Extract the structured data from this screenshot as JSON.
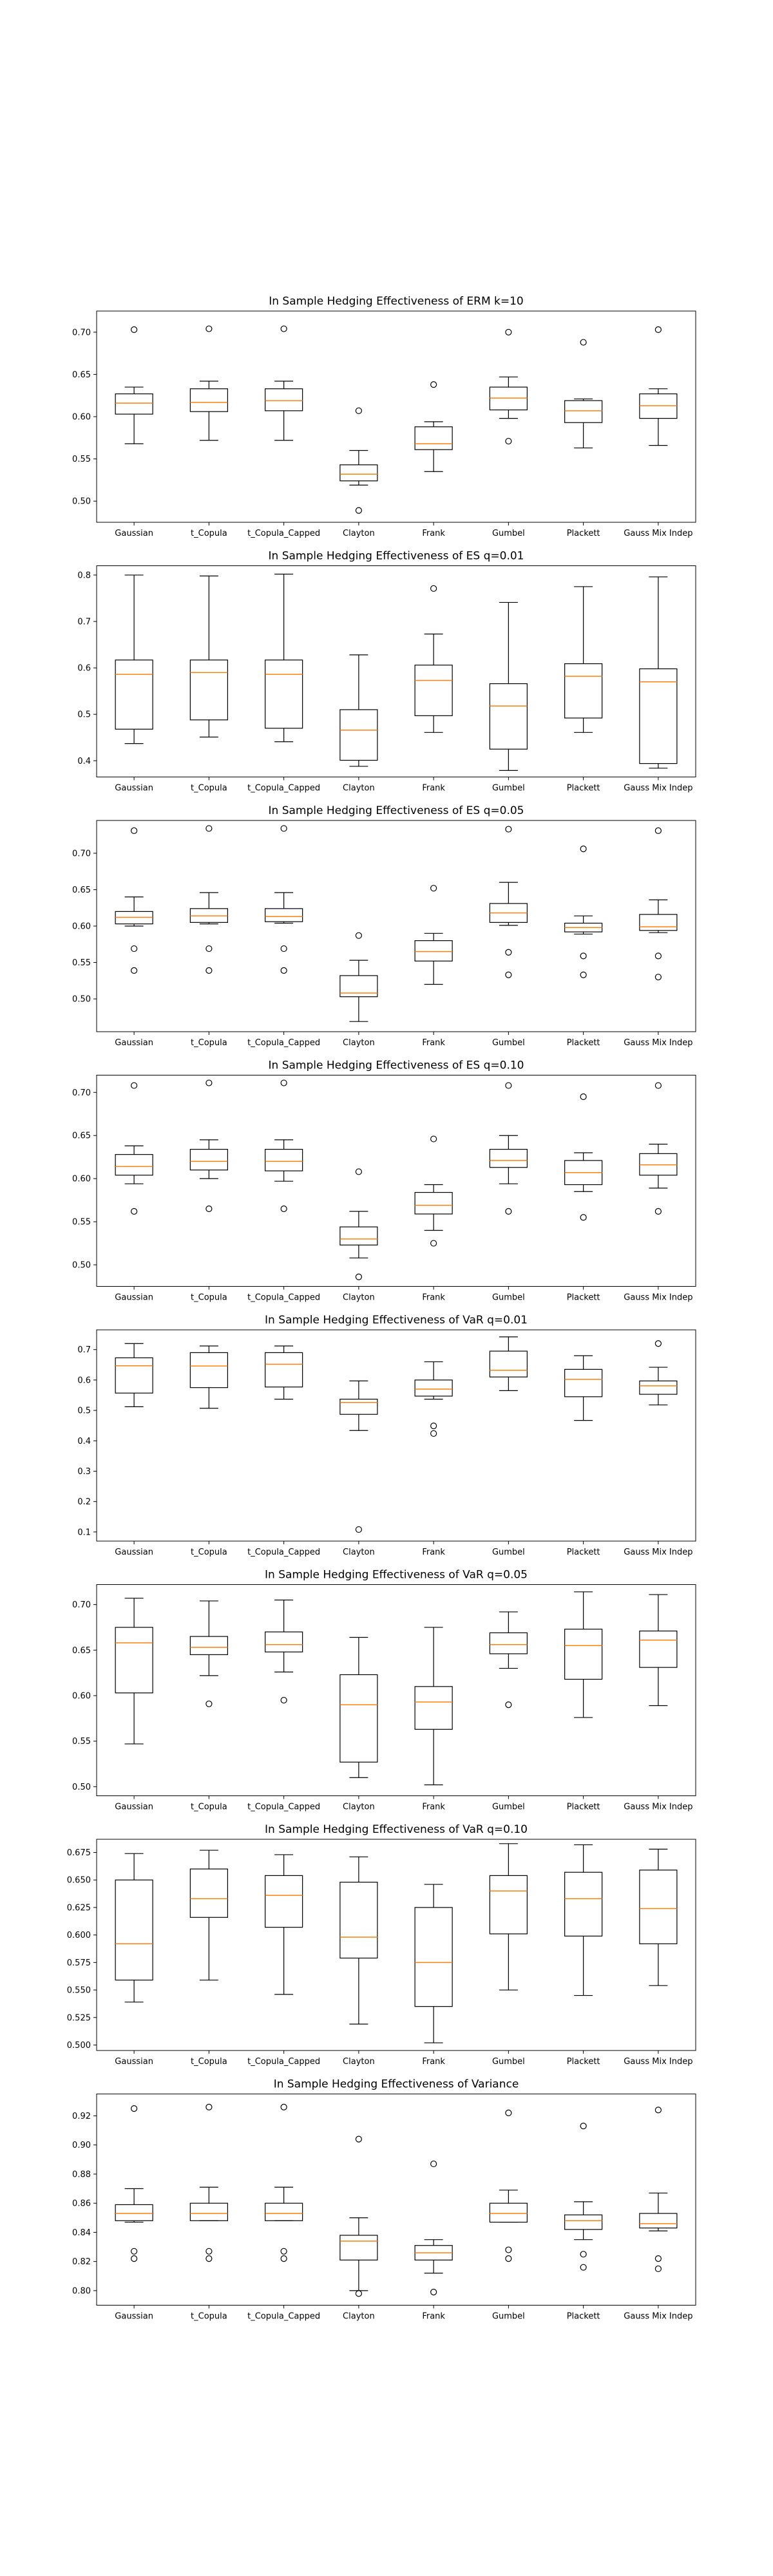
{
  "chart_data": [
    {
      "type": "box",
      "title": "In Sample Hedging Effectiveness of ERM k=10",
      "categories": [
        "Gaussian",
        "t_Copula",
        "t_Copula_Capped",
        "Clayton",
        "Frank",
        "Gumbel",
        "Plackett",
        "Gauss Mix Indep"
      ],
      "ylim": [
        0.475,
        0.725
      ],
      "yticks": [
        0.5,
        0.55,
        0.6,
        0.65,
        0.7
      ],
      "ytick_labels": [
        "0.50",
        "0.55",
        "0.60",
        "0.65",
        "0.70"
      ],
      "boxes": [
        {
          "whislo": 0.568,
          "q1": 0.603,
          "med": 0.616,
          "q3": 0.627,
          "whishi": 0.635,
          "fliers": [
            0.703
          ]
        },
        {
          "whislo": 0.572,
          "q1": 0.606,
          "med": 0.617,
          "q3": 0.633,
          "whishi": 0.642,
          "fliers": [
            0.704
          ]
        },
        {
          "whislo": 0.572,
          "q1": 0.607,
          "med": 0.619,
          "q3": 0.633,
          "whishi": 0.642,
          "fliers": [
            0.704
          ]
        },
        {
          "whislo": 0.519,
          "q1": 0.524,
          "med": 0.532,
          "q3": 0.543,
          "whishi": 0.56,
          "fliers": [
            0.607,
            0.489
          ]
        },
        {
          "whislo": 0.535,
          "q1": 0.561,
          "med": 0.568,
          "q3": 0.588,
          "whishi": 0.594,
          "fliers": [
            0.638
          ]
        },
        {
          "whislo": 0.598,
          "q1": 0.608,
          "med": 0.622,
          "q3": 0.635,
          "whishi": 0.647,
          "fliers": [
            0.7,
            0.571
          ]
        },
        {
          "whislo": 0.563,
          "q1": 0.593,
          "med": 0.607,
          "q3": 0.619,
          "whishi": 0.621,
          "fliers": [
            0.688
          ]
        },
        {
          "whislo": 0.566,
          "q1": 0.598,
          "med": 0.613,
          "q3": 0.627,
          "whishi": 0.633,
          "fliers": [
            0.703
          ]
        }
      ]
    },
    {
      "type": "box",
      "title": "In Sample Hedging Effectiveness of ES q=0.01",
      "categories": [
        "Gaussian",
        "t_Copula",
        "t_Copula_Capped",
        "Clayton",
        "Frank",
        "Gumbel",
        "Plackett",
        "Gauss Mix Indep"
      ],
      "ylim": [
        0.365,
        0.82
      ],
      "yticks": [
        0.4,
        0.5,
        0.6,
        0.7,
        0.8
      ],
      "ytick_labels": [
        "0.4",
        "0.5",
        "0.6",
        "0.7",
        "0.8"
      ],
      "boxes": [
        {
          "whislo": 0.437,
          "q1": 0.468,
          "med": 0.586,
          "q3": 0.617,
          "whishi": 0.8,
          "fliers": []
        },
        {
          "whislo": 0.451,
          "q1": 0.488,
          "med": 0.59,
          "q3": 0.617,
          "whishi": 0.798,
          "fliers": []
        },
        {
          "whislo": 0.441,
          "q1": 0.47,
          "med": 0.586,
          "q3": 0.617,
          "whishi": 0.802,
          "fliers": []
        },
        {
          "whislo": 0.388,
          "q1": 0.401,
          "med": 0.466,
          "q3": 0.51,
          "whishi": 0.628,
          "fliers": []
        },
        {
          "whislo": 0.461,
          "q1": 0.497,
          "med": 0.573,
          "q3": 0.606,
          "whishi": 0.673,
          "fliers": [
            0.771
          ]
        },
        {
          "whislo": 0.379,
          "q1": 0.425,
          "med": 0.518,
          "q3": 0.566,
          "whishi": 0.741,
          "fliers": []
        },
        {
          "whislo": 0.461,
          "q1": 0.492,
          "med": 0.582,
          "q3": 0.609,
          "whishi": 0.775,
          "fliers": []
        },
        {
          "whislo": 0.384,
          "q1": 0.394,
          "med": 0.57,
          "q3": 0.598,
          "whishi": 0.796,
          "fliers": []
        }
      ]
    },
    {
      "type": "box",
      "title": "In Sample Hedging Effectiveness of ES q=0.05",
      "categories": [
        "Gaussian",
        "t_Copula",
        "t_Copula_Capped",
        "Clayton",
        "Frank",
        "Gumbel",
        "Plackett",
        "Gauss Mix Indep"
      ],
      "ylim": [
        0.455,
        0.745
      ],
      "yticks": [
        0.5,
        0.55,
        0.6,
        0.65,
        0.7
      ],
      "ytick_labels": [
        "0.50",
        "0.55",
        "0.60",
        "0.65",
        "0.70"
      ],
      "boxes": [
        {
          "whislo": 0.6,
          "q1": 0.603,
          "med": 0.612,
          "q3": 0.62,
          "whishi": 0.64,
          "fliers": [
            0.731,
            0.569,
            0.539
          ]
        },
        {
          "whislo": 0.603,
          "q1": 0.605,
          "med": 0.614,
          "q3": 0.624,
          "whishi": 0.646,
          "fliers": [
            0.734,
            0.569,
            0.539
          ]
        },
        {
          "whislo": 0.604,
          "q1": 0.606,
          "med": 0.613,
          "q3": 0.624,
          "whishi": 0.646,
          "fliers": [
            0.734,
            0.569,
            0.539
          ]
        },
        {
          "whislo": 0.469,
          "q1": 0.503,
          "med": 0.508,
          "q3": 0.532,
          "whishi": 0.553,
          "fliers": [
            0.587
          ]
        },
        {
          "whislo": 0.52,
          "q1": 0.552,
          "med": 0.565,
          "q3": 0.58,
          "whishi": 0.59,
          "fliers": [
            0.652
          ]
        },
        {
          "whislo": 0.601,
          "q1": 0.605,
          "med": 0.618,
          "q3": 0.631,
          "whishi": 0.66,
          "fliers": [
            0.733,
            0.564,
            0.533
          ]
        },
        {
          "whislo": 0.589,
          "q1": 0.592,
          "med": 0.598,
          "q3": 0.604,
          "whishi": 0.614,
          "fliers": [
            0.706,
            0.559,
            0.533
          ]
        },
        {
          "whislo": 0.591,
          "q1": 0.594,
          "med": 0.599,
          "q3": 0.616,
          "whishi": 0.636,
          "fliers": [
            0.731,
            0.559,
            0.53
          ]
        }
      ]
    },
    {
      "type": "box",
      "title": "In Sample Hedging Effectiveness of ES q=0.10",
      "categories": [
        "Gaussian",
        "t_Copula",
        "t_Copula_Capped",
        "Clayton",
        "Frank",
        "Gumbel",
        "Plackett",
        "Gauss Mix Indep"
      ],
      "ylim": [
        0.475,
        0.72
      ],
      "yticks": [
        0.5,
        0.55,
        0.6,
        0.65,
        0.7
      ],
      "ytick_labels": [
        "0.50",
        "0.55",
        "0.60",
        "0.65",
        "0.70"
      ],
      "boxes": [
        {
          "whislo": 0.594,
          "q1": 0.604,
          "med": 0.614,
          "q3": 0.628,
          "whishi": 0.638,
          "fliers": [
            0.708,
            0.562
          ]
        },
        {
          "whislo": 0.6,
          "q1": 0.61,
          "med": 0.62,
          "q3": 0.634,
          "whishi": 0.645,
          "fliers": [
            0.711,
            0.565
          ]
        },
        {
          "whislo": 0.597,
          "q1": 0.609,
          "med": 0.62,
          "q3": 0.634,
          "whishi": 0.645,
          "fliers": [
            0.711,
            0.565
          ]
        },
        {
          "whislo": 0.508,
          "q1": 0.523,
          "med": 0.53,
          "q3": 0.544,
          "whishi": 0.562,
          "fliers": [
            0.608,
            0.486
          ]
        },
        {
          "whislo": 0.54,
          "q1": 0.559,
          "med": 0.569,
          "q3": 0.584,
          "whishi": 0.593,
          "fliers": [
            0.646,
            0.525
          ]
        },
        {
          "whislo": 0.594,
          "q1": 0.613,
          "med": 0.621,
          "q3": 0.634,
          "whishi": 0.65,
          "fliers": [
            0.708,
            0.562
          ]
        },
        {
          "whislo": 0.585,
          "q1": 0.593,
          "med": 0.607,
          "q3": 0.621,
          "whishi": 0.63,
          "fliers": [
            0.695,
            0.555
          ]
        },
        {
          "whislo": 0.589,
          "q1": 0.604,
          "med": 0.616,
          "q3": 0.629,
          "whishi": 0.64,
          "fliers": [
            0.708,
            0.562
          ]
        }
      ]
    },
    {
      "type": "box",
      "title": "In Sample Hedging Effectiveness of VaR q=0.01",
      "categories": [
        "Gaussian",
        "t_Copula",
        "t_Copula_Capped",
        "Clayton",
        "Frank",
        "Gumbel",
        "Plackett",
        "Gauss Mix Indep"
      ],
      "ylim": [
        0.07,
        0.765
      ],
      "yticks": [
        0.1,
        0.2,
        0.3,
        0.4,
        0.5,
        0.6,
        0.7
      ],
      "ytick_labels": [
        "0.1",
        "0.2",
        "0.3",
        "0.4",
        "0.5",
        "0.6",
        "0.7"
      ],
      "boxes": [
        {
          "whislo": 0.512,
          "q1": 0.557,
          "med": 0.647,
          "q3": 0.673,
          "whishi": 0.72,
          "fliers": []
        },
        {
          "whislo": 0.507,
          "q1": 0.575,
          "med": 0.646,
          "q3": 0.69,
          "whishi": 0.712,
          "fliers": []
        },
        {
          "whislo": 0.537,
          "q1": 0.577,
          "med": 0.652,
          "q3": 0.69,
          "whishi": 0.712,
          "fliers": []
        },
        {
          "whislo": 0.434,
          "q1": 0.487,
          "med": 0.526,
          "q3": 0.537,
          "whishi": 0.597,
          "fliers": [
            0.108
          ]
        },
        {
          "whislo": 0.537,
          "q1": 0.547,
          "med": 0.57,
          "q3": 0.6,
          "whishi": 0.66,
          "fliers": [
            0.449,
            0.424
          ]
        },
        {
          "whislo": 0.565,
          "q1": 0.61,
          "med": 0.632,
          "q3": 0.695,
          "whishi": 0.742,
          "fliers": []
        },
        {
          "whislo": 0.467,
          "q1": 0.545,
          "med": 0.602,
          "q3": 0.635,
          "whishi": 0.68,
          "fliers": []
        },
        {
          "whislo": 0.518,
          "q1": 0.553,
          "med": 0.581,
          "q3": 0.597,
          "whishi": 0.642,
          "fliers": [
            0.72
          ]
        }
      ]
    },
    {
      "type": "box",
      "title": "In Sample Hedging Effectiveness of VaR q=0.05",
      "categories": [
        "Gaussian",
        "t_Copula",
        "t_Copula_Capped",
        "Clayton",
        "Frank",
        "Gumbel",
        "Plackett",
        "Gauss Mix Indep"
      ],
      "ylim": [
        0.49,
        0.722
      ],
      "yticks": [
        0.5,
        0.55,
        0.6,
        0.65,
        0.7
      ],
      "ytick_labels": [
        "0.50",
        "0.55",
        "0.60",
        "0.65",
        "0.70"
      ],
      "boxes": [
        {
          "whislo": 0.547,
          "q1": 0.603,
          "med": 0.658,
          "q3": 0.675,
          "whishi": 0.707,
          "fliers": []
        },
        {
          "whislo": 0.622,
          "q1": 0.645,
          "med": 0.653,
          "q3": 0.665,
          "whishi": 0.704,
          "fliers": [
            0.591
          ]
        },
        {
          "whislo": 0.626,
          "q1": 0.648,
          "med": 0.656,
          "q3": 0.67,
          "whishi": 0.705,
          "fliers": [
            0.595
          ]
        },
        {
          "whislo": 0.51,
          "q1": 0.527,
          "med": 0.59,
          "q3": 0.623,
          "whishi": 0.664,
          "fliers": []
        },
        {
          "whislo": 0.502,
          "q1": 0.563,
          "med": 0.593,
          "q3": 0.61,
          "whishi": 0.675,
          "fliers": []
        },
        {
          "whislo": 0.63,
          "q1": 0.646,
          "med": 0.656,
          "q3": 0.669,
          "whishi": 0.692,
          "fliers": [
            0.59
          ]
        },
        {
          "whislo": 0.576,
          "q1": 0.618,
          "med": 0.655,
          "q3": 0.673,
          "whishi": 0.714,
          "fliers": []
        },
        {
          "whislo": 0.589,
          "q1": 0.631,
          "med": 0.661,
          "q3": 0.671,
          "whishi": 0.711,
          "fliers": []
        }
      ]
    },
    {
      "type": "box",
      "title": "In Sample Hedging Effectiveness of VaR q=0.10",
      "categories": [
        "Gaussian",
        "t_Copula",
        "t_Copula_Capped",
        "Clayton",
        "Frank",
        "Gumbel",
        "Plackett",
        "Gauss Mix Indep"
      ],
      "ylim": [
        0.495,
        0.687
      ],
      "yticks": [
        0.5,
        0.525,
        0.55,
        0.575,
        0.6,
        0.625,
        0.65,
        0.675
      ],
      "ytick_labels": [
        "0.500",
        "0.525",
        "0.550",
        "0.575",
        "0.600",
        "0.625",
        "0.650",
        "0.675"
      ],
      "boxes": [
        {
          "whislo": 0.539,
          "q1": 0.559,
          "med": 0.592,
          "q3": 0.65,
          "whishi": 0.674,
          "fliers": []
        },
        {
          "whislo": 0.559,
          "q1": 0.616,
          "med": 0.633,
          "q3": 0.66,
          "whishi": 0.677,
          "fliers": []
        },
        {
          "whislo": 0.546,
          "q1": 0.607,
          "med": 0.636,
          "q3": 0.654,
          "whishi": 0.673,
          "fliers": []
        },
        {
          "whislo": 0.519,
          "q1": 0.579,
          "med": 0.598,
          "q3": 0.648,
          "whishi": 0.671,
          "fliers": []
        },
        {
          "whislo": 0.502,
          "q1": 0.535,
          "med": 0.575,
          "q3": 0.625,
          "whishi": 0.646,
          "fliers": []
        },
        {
          "whislo": 0.55,
          "q1": 0.601,
          "med": 0.64,
          "q3": 0.654,
          "whishi": 0.683,
          "fliers": []
        },
        {
          "whislo": 0.545,
          "q1": 0.599,
          "med": 0.633,
          "q3": 0.657,
          "whishi": 0.682,
          "fliers": []
        },
        {
          "whislo": 0.554,
          "q1": 0.592,
          "med": 0.624,
          "q3": 0.659,
          "whishi": 0.678,
          "fliers": []
        }
      ]
    },
    {
      "type": "box",
      "title": "In Sample Hedging Effectiveness of Variance",
      "categories": [
        "Gaussian",
        "t_Copula",
        "t_Copula_Capped",
        "Clayton",
        "Frank",
        "Gumbel",
        "Plackett",
        "Gauss Mix Indep"
      ],
      "ylim": [
        0.79,
        0.935
      ],
      "yticks": [
        0.8,
        0.82,
        0.84,
        0.86,
        0.88,
        0.9,
        0.92
      ],
      "ytick_labels": [
        "0.80",
        "0.82",
        "0.84",
        "0.86",
        "0.88",
        "0.90",
        "0.92"
      ],
      "boxes": [
        {
          "whislo": 0.847,
          "q1": 0.848,
          "med": 0.853,
          "q3": 0.859,
          "whishi": 0.87,
          "fliers": [
            0.925,
            0.827,
            0.822
          ]
        },
        {
          "whislo": 0.848,
          "q1": 0.848,
          "med": 0.853,
          "q3": 0.86,
          "whishi": 0.871,
          "fliers": [
            0.926,
            0.827,
            0.822
          ]
        },
        {
          "whislo": 0.848,
          "q1": 0.848,
          "med": 0.853,
          "q3": 0.86,
          "whishi": 0.871,
          "fliers": [
            0.926,
            0.827,
            0.822
          ]
        },
        {
          "whislo": 0.8,
          "q1": 0.821,
          "med": 0.834,
          "q3": 0.838,
          "whishi": 0.85,
          "fliers": [
            0.904,
            0.798
          ]
        },
        {
          "whislo": 0.812,
          "q1": 0.821,
          "med": 0.826,
          "q3": 0.831,
          "whishi": 0.835,
          "fliers": [
            0.887,
            0.799
          ]
        },
        {
          "whislo": 0.847,
          "q1": 0.847,
          "med": 0.853,
          "q3": 0.86,
          "whishi": 0.869,
          "fliers": [
            0.922,
            0.828,
            0.822
          ]
        },
        {
          "whislo": 0.835,
          "q1": 0.842,
          "med": 0.848,
          "q3": 0.852,
          "whishi": 0.861,
          "fliers": [
            0.913,
            0.825,
            0.816
          ]
        },
        {
          "whislo": 0.841,
          "q1": 0.843,
          "med": 0.846,
          "q3": 0.853,
          "whishi": 0.867,
          "fliers": [
            0.924,
            0.822,
            0.815
          ]
        }
      ]
    }
  ],
  "colors": {
    "median": "#ff7f0e",
    "box": "#000000",
    "background": "#ffffff"
  }
}
